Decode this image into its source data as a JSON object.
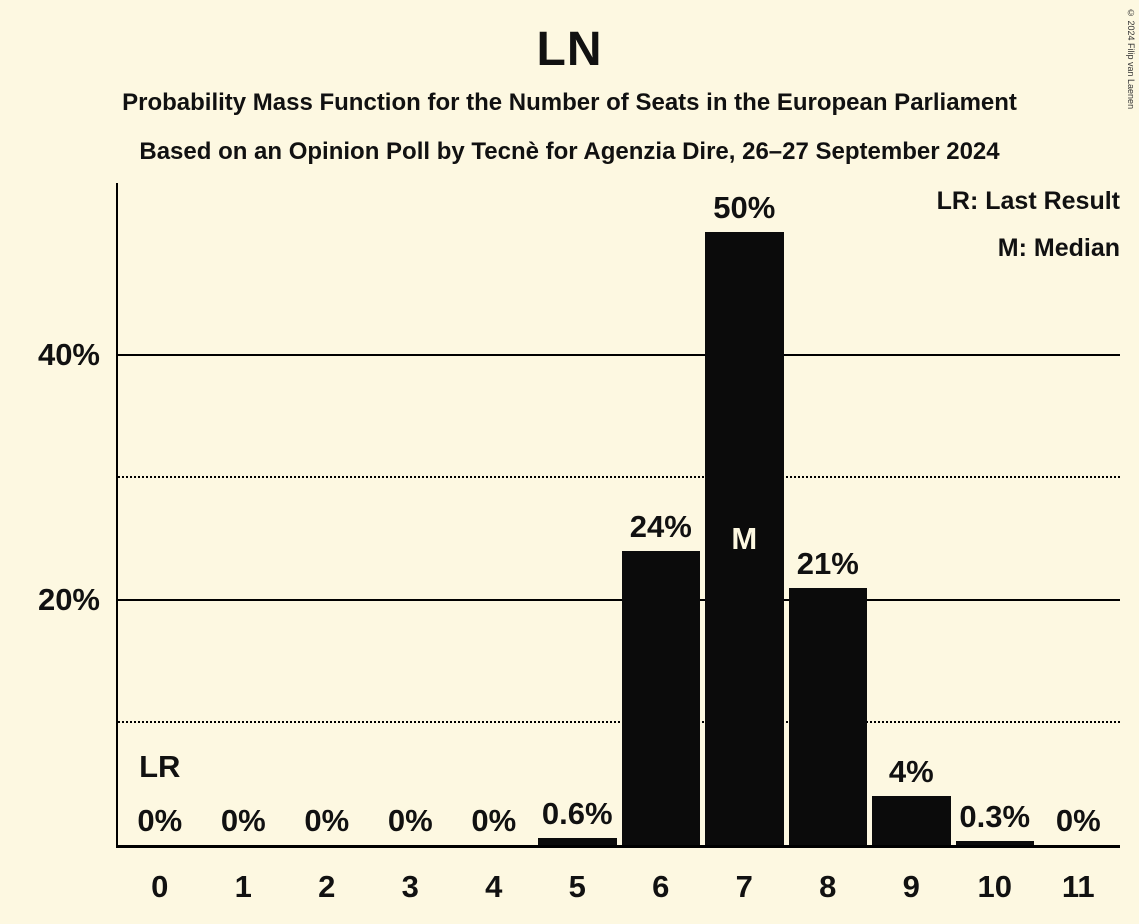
{
  "header": {
    "title": "LN",
    "subtitle1": "Probability Mass Function for the Number of Seats in the European Parliament",
    "subtitle2": "Based on an Opinion Poll by Tecnè for Agenzia Dire, 26–27 September 2024",
    "copyright": "© 2024 Filip van Laenen"
  },
  "legend": {
    "lr": "LR: Last Result",
    "m": "M: Median"
  },
  "chart_data": {
    "type": "bar",
    "title": "LN",
    "categories": [
      "0",
      "1",
      "2",
      "3",
      "4",
      "5",
      "6",
      "7",
      "8",
      "9",
      "10",
      "11"
    ],
    "values": [
      0,
      0,
      0,
      0,
      0,
      0.6,
      24,
      50,
      21,
      4,
      0.3,
      0
    ],
    "labels": [
      "0%",
      "0%",
      "0%",
      "0%",
      "0%",
      "0.6%",
      "24%",
      "50%",
      "21%",
      "4%",
      "0.3%",
      "0%"
    ],
    "ylim": [
      0,
      54
    ],
    "yticks": [
      {
        "value": 20,
        "label": "20%"
      },
      {
        "value": 40,
        "label": "40%"
      }
    ],
    "solid_gridlines": [
      20,
      40
    ],
    "dotted_gridlines": [
      10,
      30
    ],
    "grid": true,
    "legend_position": "top-right",
    "last_result_index": 0,
    "last_result_label": "LR",
    "median_index": 7,
    "median_label": "M",
    "bar_color": "#0b0b0b",
    "background_color": "#fdf8e1",
    "text_color": "#111111"
  }
}
